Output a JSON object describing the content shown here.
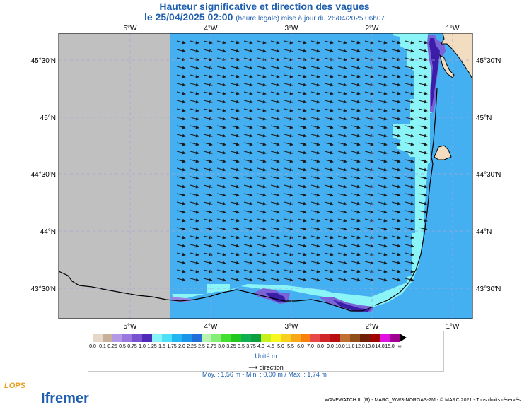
{
  "header": {
    "title": "Hauteur significative et direction des vagues",
    "date": "le 25/04/2025 02:00",
    "subtitle": "(heure légale) mise à jour du 26/04/2025 06h07"
  },
  "map": {
    "lon_labels": [
      "5°W",
      "4°W",
      "3°W",
      "2°W",
      "1°W"
    ],
    "lat_labels": [
      "45°30'N",
      "45°N",
      "44°30'N",
      "44°N",
      "43°30'N"
    ],
    "colors": {
      "no_data": "#c0c0c0",
      "sea_main": "#44b0f2",
      "sea_coastal": "#8af4f6",
      "sea_purple_light": "#7a62d8",
      "sea_purple_dark": "#3b1ea8",
      "land": "#f3ddc0",
      "coast_line": "#000000",
      "grid": "#a6a6d2",
      "arrow": "#1a1a1a"
    }
  },
  "legend": {
    "labels": [
      "0,0",
      "0,1",
      "0,25",
      "0,5",
      "0,75",
      "1,0",
      "1,25",
      "1,5",
      "1,75",
      "2,0",
      "2,25",
      "2,5",
      "2,75",
      "3,0",
      "3,25",
      "3,5",
      "3,75",
      "4,0",
      "4,5",
      "5,0",
      "5,5",
      "6,0",
      "7,0",
      "8,0",
      "9,0",
      "10,0",
      "11,0",
      "12,0",
      "13,0",
      "14,0",
      "15,0",
      "∞"
    ],
    "colors": [
      "#e8d8c8",
      "#c8b09a",
      "#b49ae6",
      "#9a78e0",
      "#7a52d0",
      "#4f2ab8",
      "#86f4f8",
      "#4ee0f8",
      "#22b6f2",
      "#1b96e8",
      "#2070d8",
      "#b8f4b0",
      "#86ee78",
      "#44e030",
      "#20c820",
      "#10b050",
      "#0ea040",
      "#c6f01e",
      "#f8f820",
      "#f8d020",
      "#f8a818",
      "#f88010",
      "#e84848",
      "#d02828",
      "#b81010",
      "#c07030",
      "#905018",
      "#702008",
      "#a00000",
      "#e010e0",
      "#a00090"
    ],
    "unit": "Unité:m",
    "direction_label": "direction"
  },
  "stats": {
    "text": "Moy. : 1,56 m  -  Min. : 0,00 m / Max. : 1,74 m"
  },
  "footer": {
    "credits": "WAVEWATCH III (R) - MARC_WW3-NORGAS-2M - © MARC 2021 - Tous droits réservés",
    "logo_lops": "LOPS",
    "logo_ifremer": "Ifremer"
  }
}
